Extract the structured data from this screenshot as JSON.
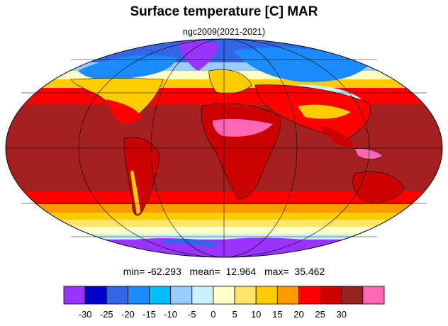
{
  "header": {
    "title": "Surface temperature [C] MAR",
    "subtitle": "ngc2009(2021-2021)"
  },
  "stats": {
    "min_label": "min=",
    "min_value": "-62.293",
    "mean_label": "mean=",
    "mean_value": "12.964",
    "max_label": "max=",
    "max_value": "35.462"
  },
  "map": {
    "projection": "mollweide",
    "graticule": "30 degree grid",
    "ocean_field_colors": {
      "polar_south": "#8a2be2",
      "subpolar_south": "#ffffc8",
      "midlat": "#ffd700",
      "warm": "#ff0000",
      "tropical": "#a52020"
    }
  },
  "colorbar": {
    "ticks": [
      "-30",
      "-25",
      "-20",
      "-15",
      "-10",
      "-5",
      "0",
      "5",
      "10",
      "15",
      "20",
      "25",
      "30"
    ],
    "colors": [
      "#9933ff",
      "#0000cc",
      "#3366e6",
      "#1a8cff",
      "#00bfff",
      "#99ccff",
      "#ccf0ff",
      "#ffffc8",
      "#ffe566",
      "#ffcc00",
      "#ff9900",
      "#ff0000",
      "#cc0000",
      "#992222",
      "#ff66b3"
    ]
  }
}
